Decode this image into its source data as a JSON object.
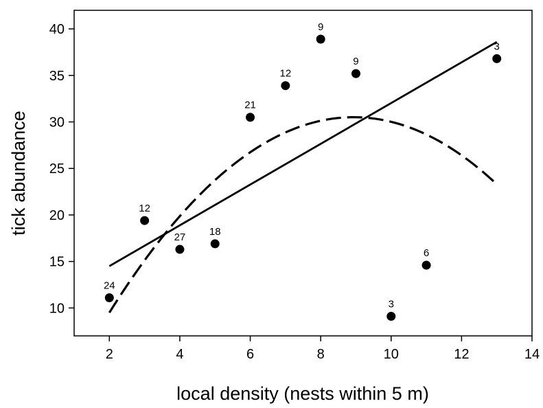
{
  "chart_data": {
    "type": "scatter",
    "xlabel": "local density (nests within 5 m)",
    "ylabel": "tick abundance",
    "xlim": [
      1,
      14
    ],
    "ylim": [
      7,
      42
    ],
    "xticks": [
      2,
      4,
      6,
      8,
      10,
      12,
      14
    ],
    "yticks": [
      10,
      15,
      20,
      25,
      30,
      35,
      40
    ],
    "grid": false,
    "points": [
      {
        "x": 2,
        "y": 11.1,
        "label": "24"
      },
      {
        "x": 3,
        "y": 19.4,
        "label": "12"
      },
      {
        "x": 4,
        "y": 16.3,
        "label": "27"
      },
      {
        "x": 5,
        "y": 16.9,
        "label": "18"
      },
      {
        "x": 6,
        "y": 30.5,
        "label": "21"
      },
      {
        "x": 7,
        "y": 33.9,
        "label": "12"
      },
      {
        "x": 8,
        "y": 38.9,
        "label": "9"
      },
      {
        "x": 9,
        "y": 35.2,
        "label": "9"
      },
      {
        "x": 10,
        "y": 9.1,
        "label": "3"
      },
      {
        "x": 11,
        "y": 14.6,
        "label": "6"
      },
      {
        "x": 13,
        "y": 36.8,
        "label": "3"
      }
    ],
    "fits": [
      {
        "style": "solid",
        "kind": "linear",
        "x_range": [
          2,
          13
        ],
        "y_range": [
          14.5,
          38.6
        ]
      },
      {
        "style": "dashed",
        "kind": "quadratic",
        "x_range": [
          2,
          13
        ],
        "y_at": [
          [
            2,
            9.5
          ],
          [
            8.8,
            30.5
          ],
          [
            13,
            23.3
          ]
        ]
      }
    ]
  }
}
